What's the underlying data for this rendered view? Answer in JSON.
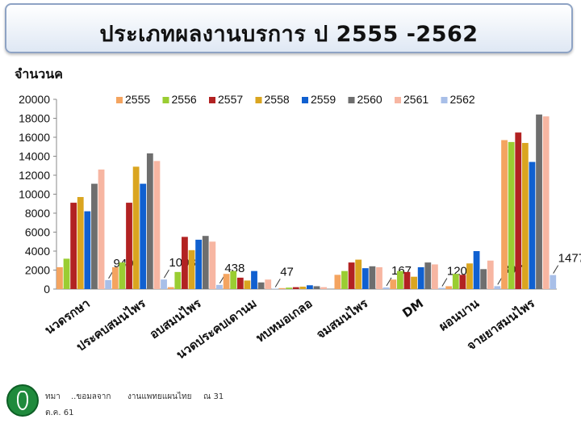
{
  "title": "ประเภทผลงานบรการ  ป 2555 -2562",
  "footer": {
    "line1a": "ทมา",
    "line1b": "..ขอมลจาก",
    "line1c": "งานแพทยแผนไทย",
    "line1d": "ณ 31",
    "line2": "ต.ค. 61"
  },
  "colors": {
    "2555": "#f4a460",
    "2556": "#9acd32",
    "2557": "#b22222",
    "2558": "#daa520",
    "2559": "#1060d0",
    "2560": "#6e6e6e",
    "2561": "#f7b6a2",
    "2562": "#a8bfe8"
  },
  "chart_data": {
    "type": "bar",
    "title": "ประเภทผลงานบรการ  ป 2555 -2562",
    "ylabel": "จำนวนค",
    "ylim": [
      0,
      20000
    ],
    "yticks": [
      0,
      2000,
      4000,
      6000,
      8000,
      10000,
      12000,
      14000,
      16000,
      18000,
      20000
    ],
    "legend_position": "top",
    "grid": false,
    "categories": [
      "นวดรกษา",
      "ประคบสมนไพร",
      "อบสมนไพร",
      "นวดประคบเดานม",
      "ทบหมอเกลอ",
      "จมสมนไพร",
      "DM",
      "ผอนบาน",
      "จายยาสมนไพร"
    ],
    "series": [
      {
        "name": "2555",
        "values": [
          2300,
          2300,
          200,
          1600,
          100,
          1500,
          1000,
          300,
          15700
        ]
      },
      {
        "name": "2556",
        "values": [
          3200,
          2800,
          1800,
          1900,
          150,
          1900,
          1900,
          1600,
          15500
        ]
      },
      {
        "name": "2557",
        "values": [
          9100,
          9100,
          5500,
          1200,
          200,
          2800,
          1800,
          1500,
          16500
        ]
      },
      {
        "name": "2558",
        "values": [
          9700,
          12900,
          4100,
          900,
          250,
          3100,
          1300,
          2700,
          15400
        ]
      },
      {
        "name": "2559",
        "values": [
          8200,
          11100,
          5200,
          1900,
          400,
          2200,
          2300,
          4000,
          13400
        ]
      },
      {
        "name": "2560",
        "values": [
          11100,
          14300,
          5600,
          700,
          300,
          2400,
          2800,
          2100,
          18400
        ]
      },
      {
        "name": "2561",
        "values": [
          12600,
          13500,
          5000,
          1000,
          200,
          2300,
          2600,
          3000,
          18200
        ]
      },
      {
        "name": "2562",
        "values": [
          949,
          1008,
          438,
          47,
          0,
          167,
          120,
          307,
          1477
        ]
      }
    ],
    "data_labels": [
      "949",
      "1008",
      "438",
      "47",
      "",
      "167",
      "120",
      "307",
      "1477"
    ]
  }
}
